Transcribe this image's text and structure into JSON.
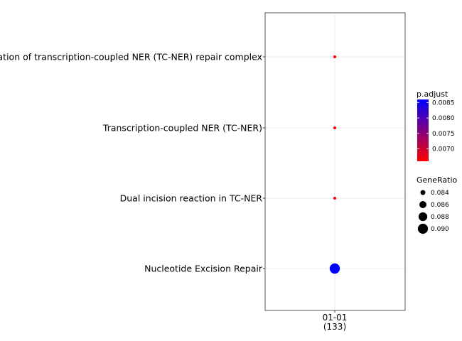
{
  "chart_data": {
    "type": "scatter",
    "x_categories": [
      "01-01\n(133)"
    ],
    "y_categories": [
      "Formation of transcription-coupled NER (TC-NER) repair complex",
      "Transcription-coupled NER (TC-NER)",
      "Dual incision reaction in TC-NER",
      "Nucleotide Excision Repair"
    ],
    "points": [
      {
        "x": "01-01\n(133)",
        "y": "Formation of transcription-coupled NER (TC-NER) repair complex",
        "gene_ratio": 0.0827,
        "p_adjust": 0.0066
      },
      {
        "x": "01-01\n(133)",
        "y": "Transcription-coupled NER (TC-NER)",
        "gene_ratio": 0.0827,
        "p_adjust": 0.0066
      },
      {
        "x": "01-01\n(133)",
        "y": "Dual incision reaction in TC-NER",
        "gene_ratio": 0.0827,
        "p_adjust": 0.0066
      },
      {
        "x": "01-01\n(133)",
        "y": "Nucleotide Excision Repair",
        "gene_ratio": 0.0902,
        "p_adjust": 0.0086
      }
    ],
    "color_legend": {
      "title": "p.adjust",
      "low_color": "#ff0000",
      "high_color": "#0000ff",
      "range": [
        0.0066,
        0.0086
      ],
      "ticks": [
        "0.0085",
        "0.0080",
        "0.0075",
        "0.0070"
      ],
      "tick_values": [
        0.0085,
        0.008,
        0.0075,
        0.007
      ]
    },
    "size_legend": {
      "title": "GeneRatio",
      "range": [
        0.0827,
        0.0902
      ],
      "entries": [
        "0.084",
        "0.086",
        "0.088",
        "0.090"
      ],
      "entry_values": [
        0.084,
        0.086,
        0.088,
        0.09
      ]
    },
    "grid": true,
    "legend_position": "right"
  }
}
